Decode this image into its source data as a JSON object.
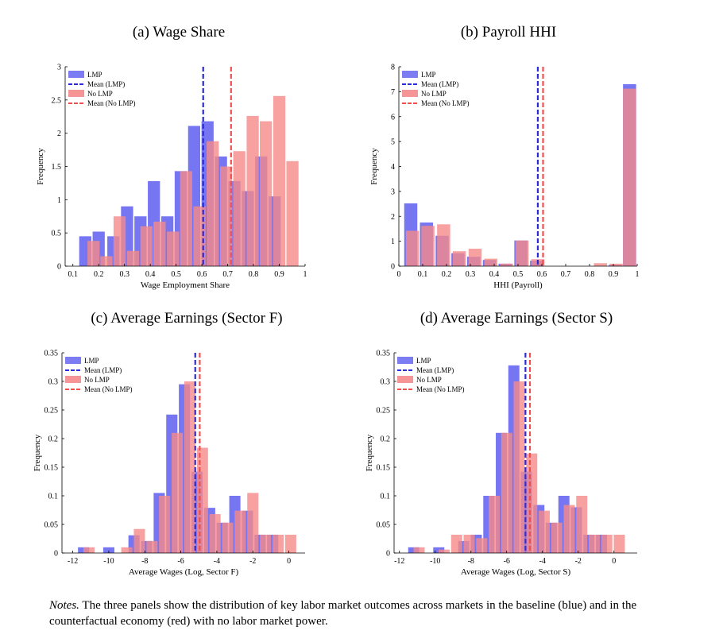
{
  "panels": [
    {
      "title": "(a) Wage Share"
    },
    {
      "title": "(b) Payroll HHI"
    },
    {
      "title": "(c) Average Earnings (Sector F)"
    },
    {
      "title": "(d) Average Earnings (Sector S)"
    }
  ],
  "notes": {
    "label": "Notes.",
    "text": " The three panels show the distribution of key labor market outcomes across markets in the baseline (blue) and in the counterfactual economy (red) with no labor market power."
  },
  "colors": {
    "lmp": "#6f6ff2",
    "no_lmp": "#f58a8a",
    "lmp_mean": "#2b2bd9",
    "no_lmp_mean": "#ef4f4f"
  },
  "chart_data": [
    {
      "type": "bar",
      "xlabel": "Wage Employment Share",
      "ylabel": "Frequency",
      "xlim": [
        0.07,
        1.0
      ],
      "ylim": [
        0,
        3
      ],
      "xticks": [
        0.1,
        0.2,
        0.3,
        0.4,
        0.5,
        0.6,
        0.7,
        0.8,
        0.9,
        1
      ],
      "xtick_labels": [
        "0.1",
        "0.2",
        "0.3",
        "0.4",
        "0.5",
        "0.6",
        "0.7",
        "0.8",
        "0.9",
        "1"
      ],
      "yticks": [
        0,
        0.5,
        1,
        1.5,
        2,
        2.5,
        3
      ],
      "ytick_labels": [
        "0",
        "0.5",
        "1",
        "1.5",
        "2",
        "2.5",
        "3"
      ],
      "legend": [
        "LMP",
        "Mean (LMP)",
        "No LMP",
        "Mean (No LMP)"
      ],
      "legend_position": "top-left",
      "series": [
        {
          "name": "LMP",
          "x": [
            0.148,
            0.2,
            0.257,
            0.31,
            0.362,
            0.414,
            0.466,
            0.518,
            0.57,
            0.622,
            0.674,
            0.726,
            0.778,
            0.83,
            0.882,
            0.934
          ],
          "width": 0.047,
          "values": [
            0.45,
            0.52,
            0.45,
            0.9,
            0.75,
            1.28,
            0.75,
            1.43,
            2.11,
            2.18,
            1.65,
            1.28,
            1.13,
            1.65,
            1.05,
            0
          ],
          "mean": 0.605
        },
        {
          "name": "No LMP",
          "x": [
            0.18,
            0.23,
            0.281,
            0.333,
            0.385,
            0.436,
            0.488,
            0.539,
            0.591,
            0.642,
            0.694,
            0.745,
            0.797,
            0.848,
            0.9,
            0.951
          ],
          "width": 0.047,
          "values": [
            0.38,
            0.15,
            0.75,
            0.23,
            0.6,
            0.67,
            0.52,
            1.43,
            0.9,
            1.88,
            1.5,
            1.73,
            2.26,
            2.18,
            2.56,
            1.58
          ],
          "mean": 0.713
        }
      ]
    },
    {
      "type": "bar",
      "xlabel": "HHI (Payroll)",
      "ylabel": "Frequency",
      "xlim": [
        0,
        1.0
      ],
      "ylim": [
        0,
        8
      ],
      "xticks": [
        0,
        0.1,
        0.2,
        0.3,
        0.4,
        0.5,
        0.6,
        0.7,
        0.8,
        0.9,
        1
      ],
      "xtick_labels": [
        "0",
        "0.1",
        "0.2",
        "0.3",
        "0.4",
        "0.5",
        "0.6",
        "0.7",
        "0.8",
        "0.9",
        "1"
      ],
      "yticks": [
        0,
        1,
        2,
        3,
        4,
        5,
        6,
        7,
        8
      ],
      "ytick_labels": [
        "0",
        "1",
        "2",
        "3",
        "4",
        "5",
        "6",
        "7",
        "8"
      ],
      "legend": [
        "LMP",
        "Mean (LMP)",
        "No LMP",
        "Mean (No LMP)"
      ],
      "legend_position": "top-left",
      "series": [
        {
          "name": "LMP",
          "x": [
            0.05,
            0.116,
            0.182,
            0.248,
            0.314,
            0.38,
            0.446,
            0.512,
            0.578,
            0.644,
            0.71,
            0.776,
            0.842,
            0.908,
            0.968
          ],
          "width": 0.055,
          "values": [
            2.52,
            1.75,
            1.22,
            0.52,
            0.38,
            0.25,
            0.1,
            1.03,
            0.22,
            0,
            0,
            0,
            0,
            0.05,
            7.3
          ],
          "mean": 0.583
        },
        {
          "name": "No LMP",
          "x": [
            0.057,
            0.122,
            0.188,
            0.254,
            0.32,
            0.386,
            0.452,
            0.517,
            0.583,
            0.649,
            0.715,
            0.781,
            0.846,
            0.912,
            0.968
          ],
          "width": 0.055,
          "values": [
            1.42,
            1.62,
            1.68,
            0.6,
            0.7,
            0.3,
            0.1,
            1.03,
            0.28,
            0,
            0,
            0,
            0.12,
            0.1,
            7.12
          ],
          "mean": 0.605
        }
      ]
    },
    {
      "type": "bar",
      "xlabel": "Average Wages (Log, Sector F)",
      "ylabel": "Frequency",
      "xlim": [
        -12.6,
        0.9
      ],
      "ylim": [
        0,
        0.35
      ],
      "xticks": [
        -12,
        -10,
        -8,
        -6,
        -4,
        -2,
        0
      ],
      "xtick_labels": [
        "-12",
        "-10",
        "-8",
        "-6",
        "-4",
        "-2",
        "0"
      ],
      "yticks": [
        0,
        0.05,
        0.1,
        0.15,
        0.2,
        0.25,
        0.3,
        0.35
      ],
      "ytick_labels": [
        "0",
        "0.05",
        "0.1",
        "0.15",
        "0.2",
        "0.25",
        "0.3",
        "0.35"
      ],
      "legend": [
        "LMP",
        "Mean (LMP)",
        "No LMP",
        "Mean (No LMP)"
      ],
      "legend_position": "top-left",
      "series": [
        {
          "name": "LMP",
          "x": [
            -11.4,
            -10.7,
            -10.0,
            -9.3,
            -8.6,
            -7.9,
            -7.2,
            -6.5,
            -5.8,
            -5.1,
            -4.4,
            -3.7,
            -3.0,
            -2.3,
            -1.6,
            -0.9,
            -0.2
          ],
          "width": 0.62,
          "values": [
            0.01,
            0,
            0.01,
            0,
            0.031,
            0.021,
            0.105,
            0.242,
            0.295,
            0.142,
            0.079,
            0.053,
            0.1,
            0.074,
            0.032,
            0.032,
            0
          ],
          "mean": -5.2
        },
        {
          "name": "No LMP",
          "x": [
            -11.1,
            -10.4,
            -9.7,
            -9.0,
            -8.3,
            -7.6,
            -6.9,
            -6.2,
            -5.5,
            -4.8,
            -4.1,
            -3.4,
            -2.7,
            -2.0,
            -1.3,
            -0.6,
            0.1
          ],
          "width": 0.62,
          "values": [
            0.01,
            0,
            0,
            0.01,
            0.042,
            0.021,
            0.1,
            0.21,
            0.3,
            0.184,
            0.068,
            0.053,
            0.074,
            0.105,
            0.032,
            0.032,
            0.032
          ],
          "mean": -4.95
        }
      ]
    },
    {
      "type": "bar",
      "xlabel": "Average Wages (Log, Sector S)",
      "ylabel": "Frequency",
      "xlim": [
        -12.3,
        1.3
      ],
      "ylim": [
        0,
        0.35
      ],
      "xticks": [
        -12,
        -10,
        -8,
        -6,
        -4,
        -2,
        0
      ],
      "xtick_labels": [
        "-12",
        "-10",
        "-8",
        "-6",
        "-4",
        "-2",
        "0"
      ],
      "yticks": [
        0,
        0.05,
        0.1,
        0.15,
        0.2,
        0.25,
        0.3,
        0.35
      ],
      "ytick_labels": [
        "0",
        "0.05",
        "0.1",
        "0.15",
        "0.2",
        "0.25",
        "0.3",
        "0.35"
      ],
      "legend": [
        "LMP",
        "Mean (LMP)",
        "No LMP",
        "Mean (No LMP)"
      ],
      "legend_position": "top-left",
      "series": [
        {
          "name": "LMP",
          "x": [
            -11.2,
            -10.5,
            -9.8,
            -9.1,
            -8.4,
            -7.7,
            -7.0,
            -6.3,
            -5.6,
            -4.9,
            -4.2,
            -3.5,
            -2.8,
            -2.1,
            -1.4,
            -0.7,
            0
          ],
          "width": 0.62,
          "values": [
            0.01,
            0,
            0.01,
            0,
            0.021,
            0.032,
            0.1,
            0.21,
            0.328,
            0.142,
            0.084,
            0.053,
            0.1,
            0.08,
            0.032,
            0.032,
            0
          ],
          "mean": -4.95
        },
        {
          "name": "No LMP",
          "x": [
            -10.9,
            -10.2,
            -9.5,
            -8.8,
            -8.1,
            -7.4,
            -6.7,
            -6.0,
            -5.3,
            -4.6,
            -3.9,
            -3.2,
            -2.5,
            -1.8,
            -1.1,
            -0.4,
            0.3
          ],
          "width": 0.62,
          "values": [
            0.01,
            0,
            0.006,
            0.032,
            0.032,
            0.026,
            0.1,
            0.21,
            0.3,
            0.174,
            0.074,
            0.053,
            0.084,
            0.1,
            0.032,
            0.032,
            0.032
          ],
          "mean": -4.7
        }
      ]
    }
  ]
}
